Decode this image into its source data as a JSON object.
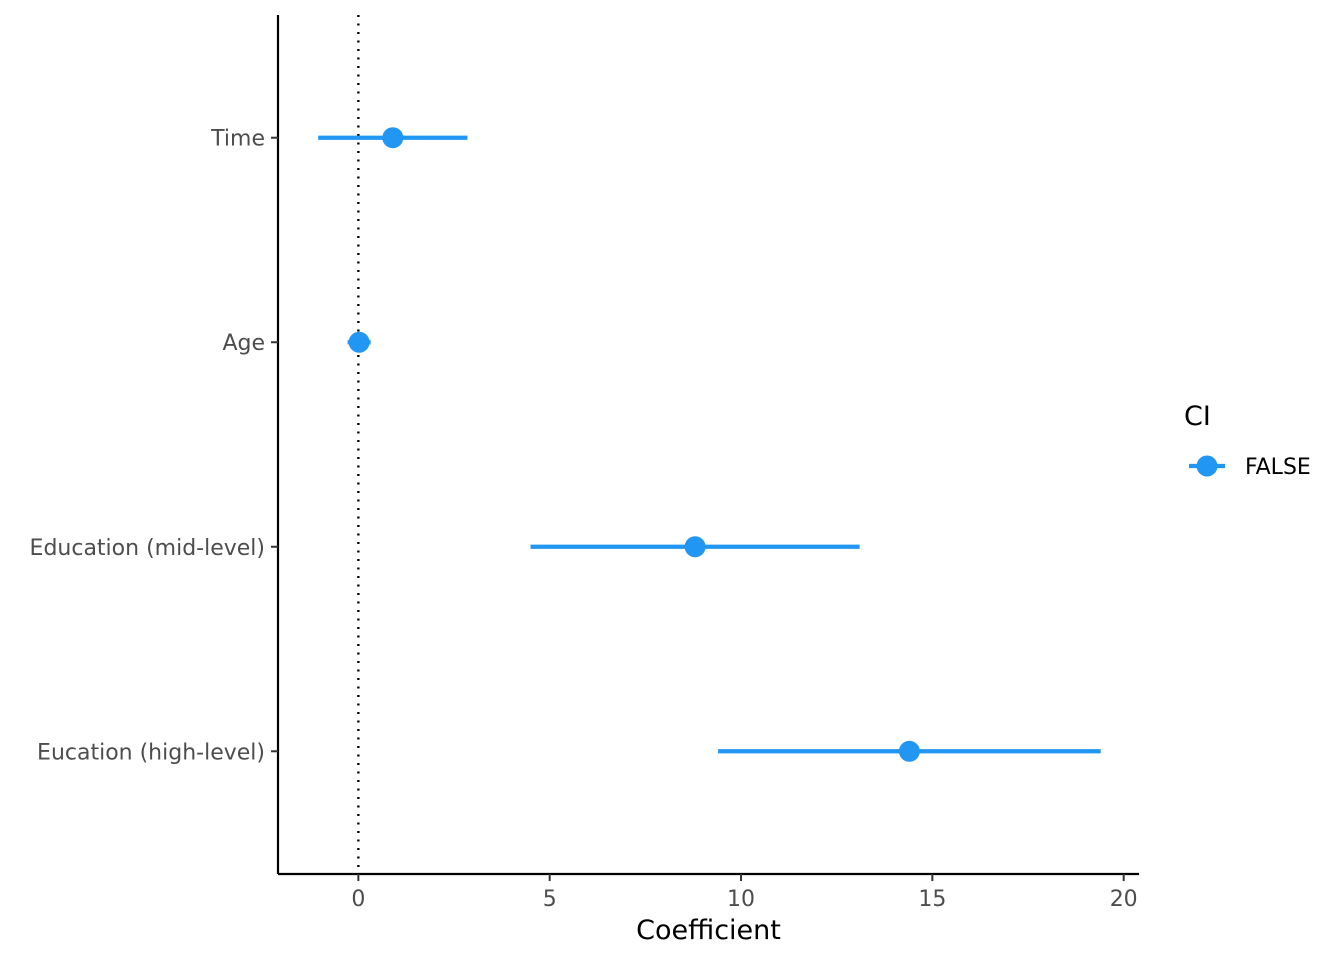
{
  "chart_data": {
    "type": "scatter",
    "title": "",
    "xlabel": "Coefficient",
    "ylabel": "",
    "xlim": [
      -2.1,
      20.4
    ],
    "x_ticks": [
      0,
      5,
      10,
      15,
      20
    ],
    "x_tick_labels": [
      "0",
      "5",
      "10",
      "15",
      "20"
    ],
    "reference_line_x": 0,
    "grid": false,
    "categories": [
      "Time",
      "Age",
      "Education (mid-level)",
      "Eucation (high-level)"
    ],
    "series": [
      {
        "name": "FALSE",
        "color": "#2196F3",
        "points": [
          {
            "term": "Time",
            "estimate": 0.9,
            "lower": -1.05,
            "upper": 2.85
          },
          {
            "term": "Age",
            "estimate": 0.02,
            "lower": -0.28,
            "upper": 0.32
          },
          {
            "term": "Education (mid-level)",
            "estimate": 8.8,
            "lower": 4.5,
            "upper": 13.1
          },
          {
            "term": "Eucation (high-level)",
            "estimate": 14.4,
            "lower": 9.4,
            "upper": 19.4
          }
        ]
      }
    ],
    "legend": {
      "title": "CI",
      "placement": "right",
      "entries": [
        "FALSE"
      ]
    }
  }
}
